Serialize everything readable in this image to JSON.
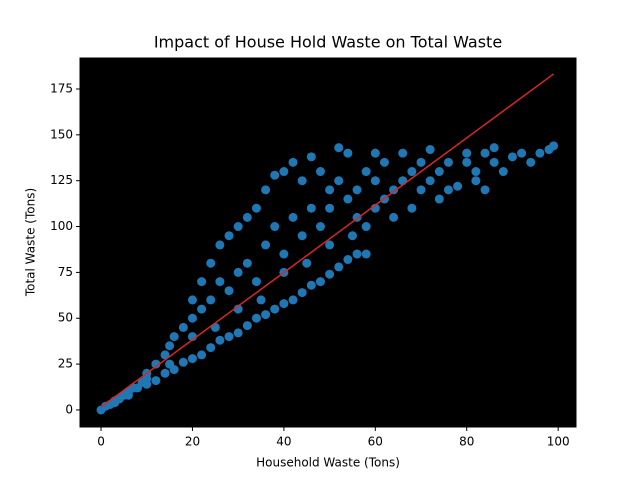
{
  "chart_data": {
    "type": "scatter",
    "title": "Impact of House Hold Waste on Total Waste",
    "x_label": "Household Waste (Tons)",
    "y_label": "Total Waste (Tons)",
    "plot_background": "#000000",
    "xlim": [
      -4.6,
      103.9
    ],
    "ylim": [
      -9.3,
      191.9
    ],
    "xticks": [
      0,
      20,
      40,
      60,
      80,
      100
    ],
    "yticks": [
      0,
      25,
      50,
      75,
      100,
      125,
      150,
      175
    ],
    "grid": false,
    "series": [
      {
        "type": "scatter",
        "color": "#1f77b4",
        "x": [
          0,
          1,
          2,
          3,
          4,
          5,
          6,
          7,
          8,
          9,
          10,
          10,
          12,
          12,
          14,
          14,
          15,
          16,
          16,
          18,
          18,
          20,
          20,
          20,
          22,
          22,
          22,
          24,
          24,
          24,
          26,
          26,
          26,
          28,
          28,
          28,
          30,
          30,
          30,
          32,
          32,
          32,
          34,
          34,
          34,
          36,
          36,
          36,
          38,
          38,
          38,
          40,
          40,
          40,
          42,
          42,
          42,
          44,
          44,
          44,
          46,
          46,
          46,
          48,
          48,
          48,
          50,
          50,
          50,
          52,
          52,
          52,
          54,
          54,
          54,
          56,
          56,
          56,
          58,
          58,
          60,
          60,
          60,
          62,
          62,
          64,
          64,
          66,
          66,
          68,
          68,
          70,
          70,
          72,
          72,
          74,
          74,
          76,
          76,
          78,
          80,
          80,
          82,
          82,
          84,
          84,
          86,
          86,
          88,
          90,
          92,
          94,
          96,
          98,
          99,
          40,
          45,
          50,
          55,
          58,
          35,
          30,
          25,
          20,
          15,
          10,
          6,
          3
        ],
        "values": [
          0,
          2,
          3,
          5,
          6,
          8,
          10,
          12,
          12,
          15,
          14,
          20,
          16,
          25,
          20,
          30,
          35,
          22,
          40,
          26,
          45,
          28,
          50,
          60,
          30,
          55,
          70,
          34,
          60,
          80,
          38,
          70,
          90,
          40,
          65,
          95,
          42,
          75,
          100,
          46,
          80,
          105,
          50,
          70,
          110,
          52,
          90,
          120,
          55,
          100,
          128,
          58,
          85,
          130,
          60,
          105,
          135,
          64,
          95,
          125,
          68,
          110,
          138,
          70,
          100,
          130,
          74,
          120,
          110,
          78,
          125,
          143,
          82,
          115,
          140,
          85,
          120,
          105,
          100,
          130,
          110,
          140,
          125,
          115,
          135,
          120,
          105,
          125,
          140,
          130,
          110,
          120,
          135,
          125,
          142,
          115,
          130,
          120,
          135,
          122,
          135,
          140,
          130,
          125,
          140,
          120,
          135,
          143,
          130,
          138,
          140,
          135,
          140,
          142,
          144,
          75,
          80,
          90,
          95,
          85,
          60,
          55,
          45,
          40,
          25,
          17,
          8,
          4
        ]
      },
      {
        "type": "line",
        "color": "#d62728",
        "x": [
          0,
          99
        ],
        "values": [
          1.6,
          183.2
        ]
      }
    ]
  }
}
